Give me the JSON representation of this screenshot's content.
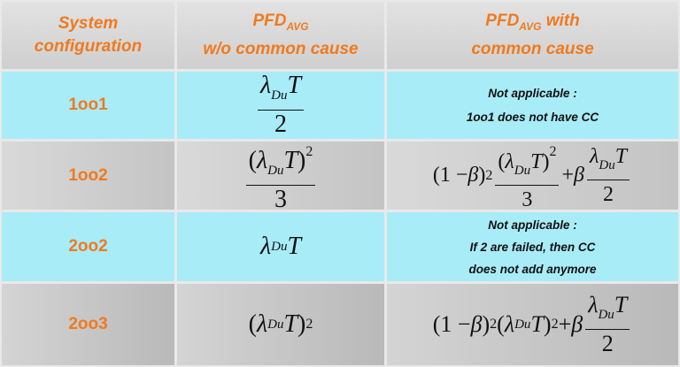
{
  "header": {
    "col1": [
      "System",
      "configuration"
    ],
    "col2": {
      "main": "PFD",
      "sub": "AVG",
      "line2": "w/o common cause"
    },
    "col3": {
      "main": "PFD",
      "sub": "AVG",
      "after": " with",
      "line2": "common cause"
    }
  },
  "sym": {
    "lambda": "λ",
    "du": "Du",
    "T": "T",
    "beta": "β",
    "one_minus": "(1 − ",
    "close": ")",
    "two": "2",
    "three": "3",
    "open": "(",
    "plus": " + "
  },
  "rows": [
    {
      "config": "1oo1",
      "note": [
        "Not applicable :",
        "1oo1 does not have CC"
      ]
    },
    {
      "config": "1oo2"
    },
    {
      "config": "2oo2",
      "note": [
        "Not applicable :",
        "If 2 are failed, then CC",
        "does not add anymore"
      ]
    },
    {
      "config": "2oo3"
    }
  ],
  "colors": {
    "accent": "#f07a1e",
    "highlight_row": "#a8ecf8"
  }
}
